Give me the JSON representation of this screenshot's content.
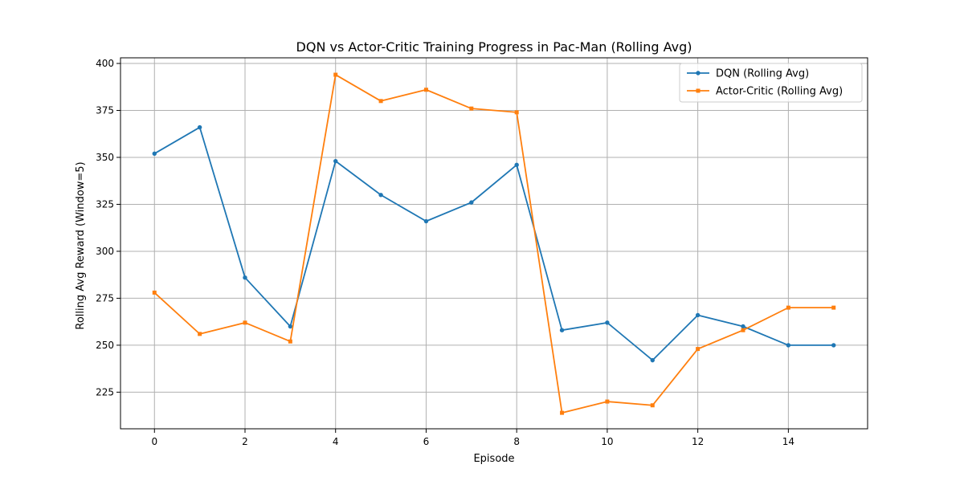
{
  "chart_data": {
    "type": "line",
    "title": "DQN vs Actor-Critic Training Progress in Pac-Man (Rolling Avg)",
    "xlabel": "Episode",
    "ylabel": "Rolling Avg Reward (Window=5)",
    "xlim": [
      -0.75,
      15.75
    ],
    "ylim": [
      205.5,
      403
    ],
    "x_ticks": [
      0,
      2,
      4,
      6,
      8,
      10,
      12,
      14
    ],
    "y_ticks": [
      225,
      250,
      275,
      300,
      325,
      350,
      375,
      400
    ],
    "grid": true,
    "legend_position": "top-right",
    "x": [
      0,
      1,
      2,
      3,
      4,
      5,
      6,
      7,
      8,
      9,
      10,
      11,
      12,
      13,
      14,
      15
    ],
    "series": [
      {
        "name": "DQN (Rolling Avg)",
        "color": "#1f77b4",
        "marker": "circle",
        "values": [
          352,
          366,
          286,
          260,
          348,
          330,
          316,
          326,
          346,
          258,
          262,
          242,
          266,
          260,
          250,
          250
        ]
      },
      {
        "name": "Actor-Critic (Rolling Avg)",
        "color": "#ff7f0e",
        "marker": "square",
        "values": [
          278,
          256,
          262,
          252,
          394,
          380,
          386,
          376,
          374,
          214,
          220,
          218,
          248,
          258,
          270,
          270
        ]
      }
    ]
  }
}
